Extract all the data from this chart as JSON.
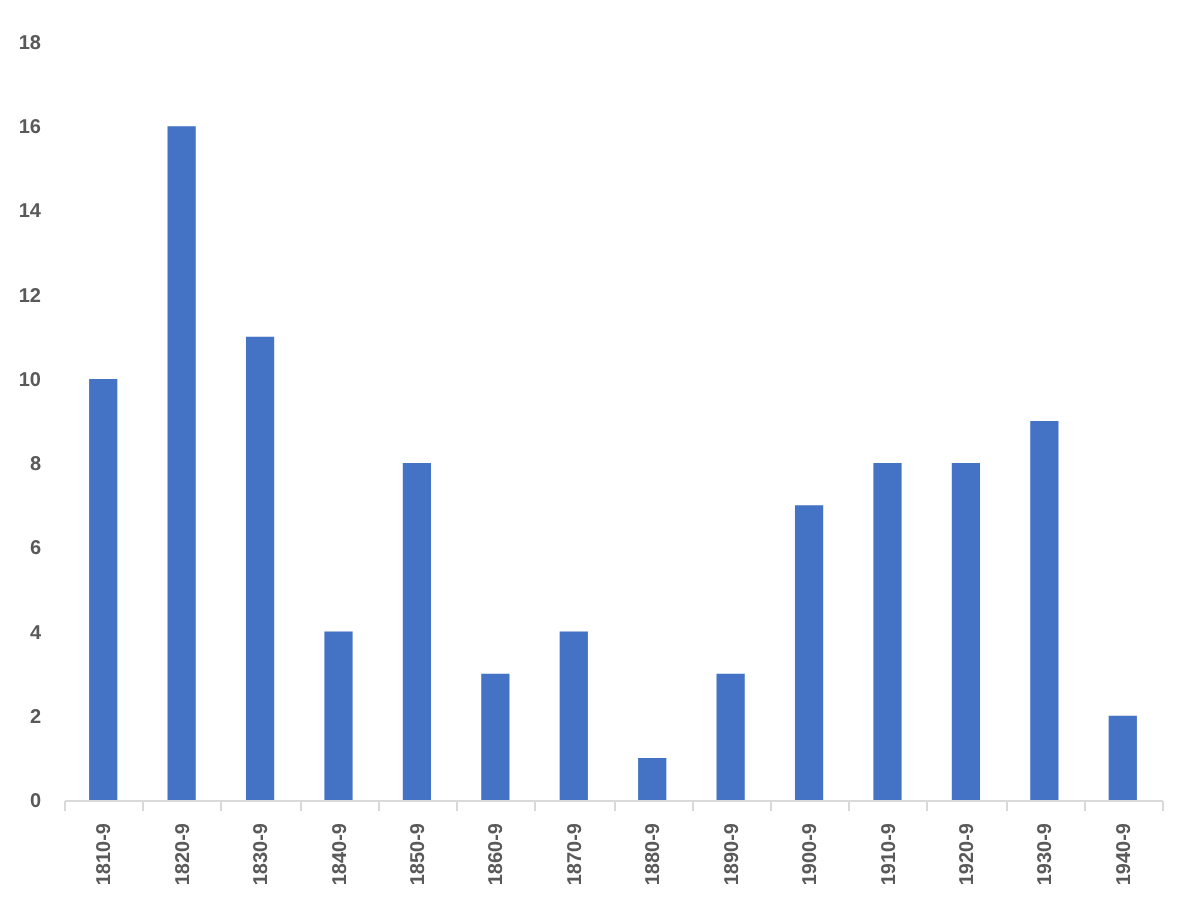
{
  "chart_data": {
    "type": "bar",
    "categories": [
      "1810-9",
      "1820-9",
      "1830-9",
      "1840-9",
      "1850-9",
      "1860-9",
      "1870-9",
      "1880-9",
      "1890-9",
      "1900-9",
      "1910-9",
      "1920-9",
      "1930-9",
      "1940-9"
    ],
    "values": [
      10,
      16,
      11,
      4,
      8,
      3,
      4,
      1,
      3,
      7,
      8,
      8,
      9,
      2
    ],
    "color": "#4472c4",
    "ylim": [
      0,
      18
    ],
    "yticks": [
      0,
      2,
      4,
      6,
      8,
      10,
      12,
      14,
      16,
      18
    ],
    "grid": false
  }
}
